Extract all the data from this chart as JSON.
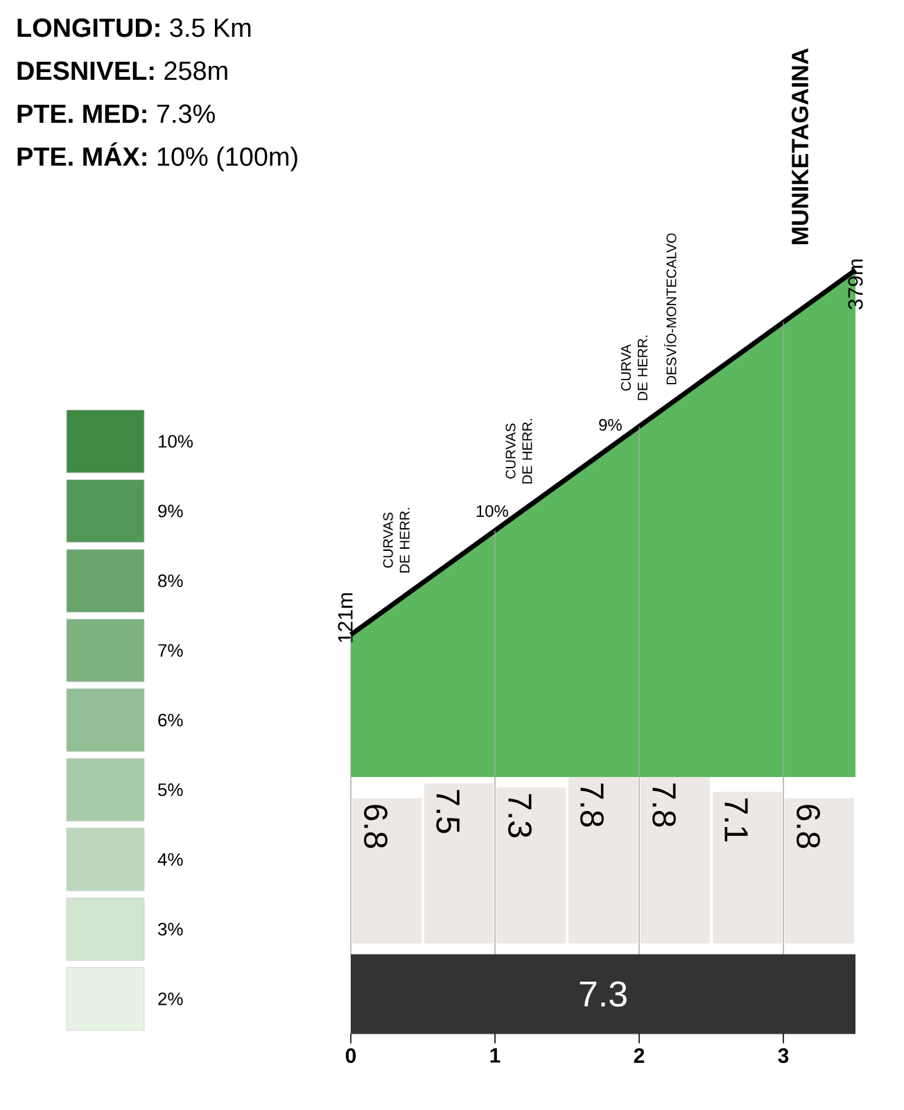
{
  "chart_data": {
    "type": "area",
    "series": [
      {
        "color": "#5cb85f",
        "x": [
          0,
          3.5
        ],
        "values": [
          121,
          379
        ],
        "value_labels": [
          "121m",
          "379m"
        ]
      },
      {
        "type": "bar",
        "axis": "y2",
        "color": "#ece8e6",
        "x": [
          0.25,
          0.75,
          1.25,
          1.75,
          2.25,
          2.75,
          3.25
        ],
        "values": [
          6.8,
          7.5,
          7.3,
          7.8,
          7.8,
          7.1,
          6.8
        ],
        "value_labels": [
          "6.8",
          "7.5",
          "7.3",
          "7.8",
          "7.8",
          "7.1",
          "6.8"
        ]
      }
    ],
    "xlim": [
      0,
      3.5
    ],
    "xticks": [
      0,
      1,
      2,
      3
    ],
    "tick_labels": "x",
    "grid": "x",
    "marker": "none",
    "line_style": "solid",
    "clim": [
      1.5,
      10.5
    ],
    "cticks": [
      {
        "value": 2,
        "label": "2%"
      },
      {
        "value": 3,
        "label": "3%"
      },
      {
        "value": 4,
        "label": "4%"
      },
      {
        "value": 5,
        "label": "5%"
      },
      {
        "value": 6,
        "label": "6%"
      },
      {
        "value": 7,
        "label": "7%"
      },
      {
        "value": 8,
        "label": "8%"
      },
      {
        "value": 9,
        "label": "9%"
      },
      {
        "value": 10,
        "label": "10%"
      }
    ],
    "annotations": [
      "**LONGITUD:** 3.5 Km",
      "**DESNIVEL:** 258m",
      "**PTE. MED:** 7.3%",
      "**PTE. MÁX:** 10% (100m)",
      "7.3",
      {
        "text": "CURVAS DE HERR.",
        "x": 0.45,
        "y": 154
      },
      {
        "text": "10%",
        "x": 0.98,
        "y": 193
      },
      {
        "text": "CURVAS DE HERR.",
        "x": 1.3,
        "y": 217
      },
      {
        "text": "9%",
        "x": 1.8,
        "y": 254
      },
      {
        "text": "CURVA DE HERR.",
        "x": 2.1,
        "y": 276
      },
      {
        "text": "DESVÍO-MONTECALVO",
        "x": 2.35,
        "y": 294
      },
      {
        "text": "MUNIKETAGAINA",
        "x": 3.5,
        "y": 379
      }
    ]
  }
}
